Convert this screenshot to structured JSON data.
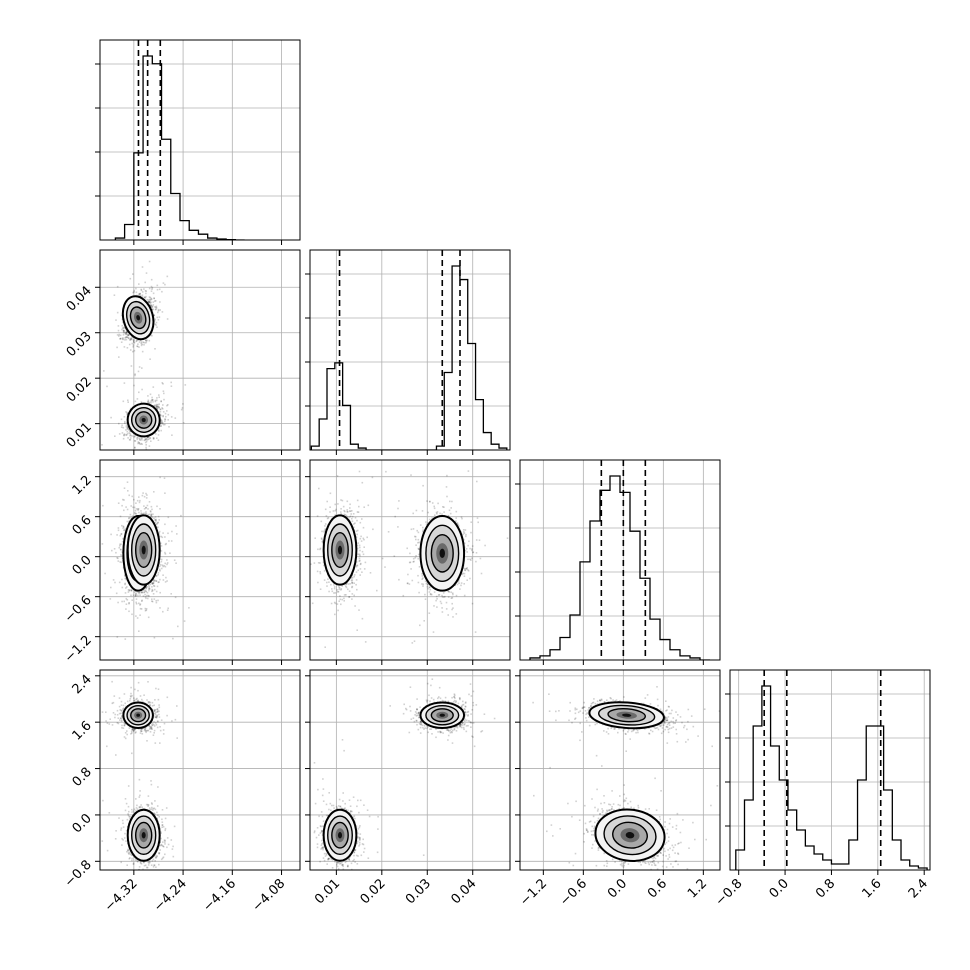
{
  "chart_data": {
    "type": "corner",
    "params": [
      {
        "range": [
          -4.375,
          -4.05
        ],
        "ticks": [
          -4.32,
          -4.24,
          -4.16,
          -4.08
        ],
        "tick_labels": [
          "−4.32",
          "−4.24",
          "−4.16",
          "−4.08"
        ],
        "quantiles": [
          -4.3125,
          -4.2976,
          -4.277
        ],
        "hist_edges_range": [
          -4.35,
          -4.14
        ],
        "hist_counts": [
          1,
          8,
          45,
          95,
          91,
          52,
          24,
          10,
          5,
          3,
          1,
          0.5,
          0.2,
          0
        ]
      },
      {
        "range": [
          0.0042,
          0.0482
        ],
        "ticks": [
          0.01,
          0.02,
          0.03,
          0.04
        ],
        "tick_labels": [
          "0.01",
          "0.02",
          "0.03",
          "0.04"
        ],
        "quantiles": [
          0.0107,
          0.0333,
          0.0372
        ],
        "hist_edges_range": [
          0.0045,
          0.0475
        ],
        "hist_counts": [
          2,
          16,
          42,
          45,
          23,
          3,
          1,
          0,
          0,
          0,
          0,
          0,
          0,
          0,
          0,
          0,
          2,
          40,
          95,
          88,
          55,
          26,
          9,
          3,
          1
        ]
      },
      {
        "range": [
          -1.55,
          1.45
        ],
        "ticks": [
          -1.2,
          -0.6,
          0.0,
          0.6,
          1.2
        ],
        "tick_labels": [
          "−1.2",
          "−0.6",
          "0.0",
          "0.6",
          "1.2"
        ],
        "quantiles": [
          -0.33,
          0.0,
          0.33
        ],
        "hist_edges_range": [
          -1.4,
          1.3
        ],
        "hist_counts": [
          1,
          2,
          5,
          11,
          22,
          48,
          68,
          83,
          90,
          82,
          63,
          40,
          20,
          10,
          5,
          2,
          1,
          0
        ]
      },
      {
        "range": [
          -0.95,
          2.5
        ],
        "ticks": [
          -0.8,
          0.0,
          0.8,
          1.6,
          2.4
        ],
        "tick_labels": [
          "−0.8",
          "0.0",
          "0.8",
          "1.6",
          "2.4"
        ],
        "quantiles": [
          -0.36,
          0.03,
          1.65
        ],
        "hist_edges_range": [
          -0.85,
          2.45
        ],
        "hist_counts": [
          10,
          35,
          72,
          92,
          62,
          45,
          30,
          20,
          12,
          8,
          5,
          3,
          3,
          15,
          45,
          72,
          72,
          40,
          15,
          5,
          2,
          1
        ]
      }
    ],
    "modes": [
      {
        "center": [
          -4.313,
          0.0333,
          0.05,
          1.72
        ],
        "spread": [
          0.012,
          0.0024,
          0.28,
          0.11
        ],
        "rho": {
          "0-1": 0.3,
          "2-3": -0.35
        },
        "weight": 0.5
      },
      {
        "center": [
          -4.304,
          0.0108,
          0.1,
          -0.35
        ],
        "spread": [
          0.013,
          0.0018,
          0.26,
          0.22
        ],
        "rho": {
          "0-1": 0.25,
          "2-3": -0.3
        },
        "weight": 0.5
      }
    ],
    "grid": true,
    "colors": {
      "lines": "#000000",
      "grid": "#b0b0b0",
      "points": "#000000"
    }
  }
}
